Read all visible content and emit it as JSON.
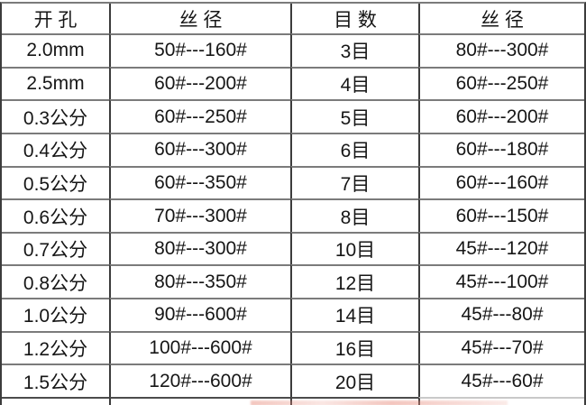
{
  "chart_data": {
    "type": "table",
    "columns": [
      "开 孔",
      "丝 径",
      "目 数",
      "丝 径"
    ],
    "rows": [
      [
        "2.0mm",
        "50#---160#",
        "3目",
        "80#---300#"
      ],
      [
        "2.5mm",
        "60#---200#",
        "4目",
        "60#---250#"
      ],
      [
        "0.3公分",
        "60#---250#",
        "5目",
        "60#---200#"
      ],
      [
        "0.4公分",
        "60#---300#",
        "6目",
        "60#---180#"
      ],
      [
        "0.5公分",
        "60#---350#",
        "7目",
        "60#---160#"
      ],
      [
        "0.6公分",
        "70#---300#",
        "8目",
        "60#---150#"
      ],
      [
        "0.7公分",
        "80#---300#",
        "10目",
        "45#---120#"
      ],
      [
        "0.8公分",
        "80#---350#",
        "12目",
        "45#---100#"
      ],
      [
        "1.0公分",
        "90#---600#",
        "14目",
        "45#---80#"
      ],
      [
        "1.2公分",
        "100#---600#",
        "16目",
        "45#---70#"
      ],
      [
        "1.5公分",
        "120#---600#",
        "20目",
        "45#---60#"
      ]
    ],
    "layout_hints": {
      "grid": "on",
      "header_row": true,
      "partial_row_cut_at_bottom": true
    }
  },
  "colors": {
    "background": "#ffffff",
    "text": "#161616",
    "grid_horizontal": "#7b7b7b",
    "grid_vertical": "#3c3c3c",
    "bottom_border_dark": "#4c4c4c",
    "bottom_border_light": "#c9c9c9",
    "watermark_remnant": "#e78c7d"
  }
}
